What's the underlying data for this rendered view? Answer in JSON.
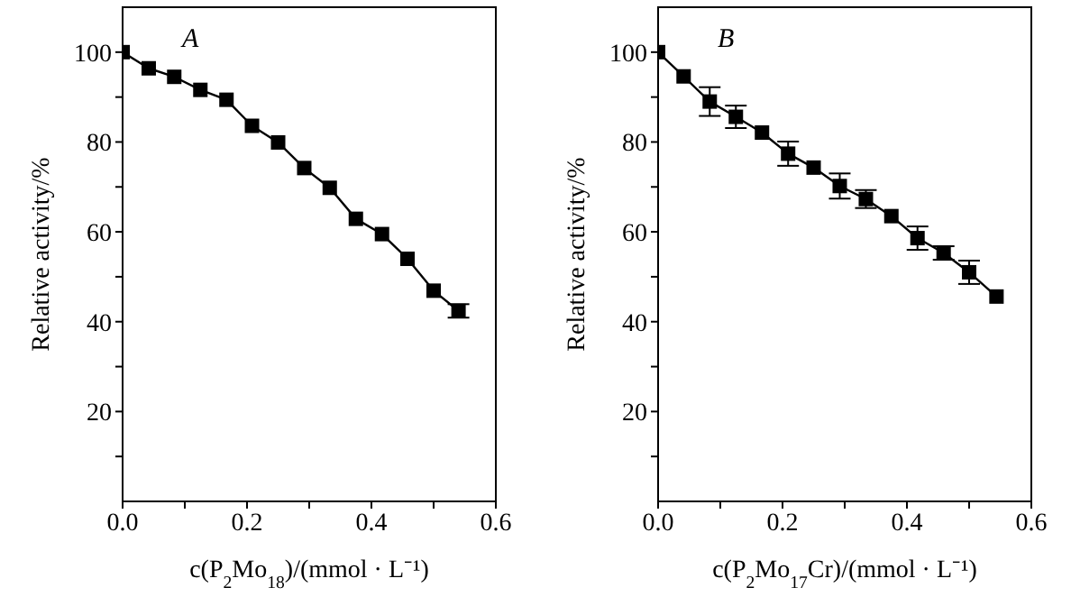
{
  "chart_data": [
    {
      "type": "line",
      "xlabel": "c(P$_{2}$Mo$_{18}$)/(mmol · L⁻¹)",
      "ylabel": "Relative activity/%",
      "annotations": [
        "A"
      ],
      "x": [
        0,
        0.042,
        0.083,
        0.125,
        0.167,
        0.208,
        0.25,
        0.292,
        0.333,
        0.375,
        0.417,
        0.458,
        0.5,
        0.54
      ],
      "series": [
        {
          "color": "#000000",
          "values": [
            100,
            96.4,
            94.5,
            91.6,
            89.4,
            83.6,
            79.9,
            74.2,
            69.8,
            62.9,
            59.5,
            54.0,
            46.9,
            42.4
          ],
          "errors": [
            null,
            null,
            null,
            null,
            null,
            null,
            null,
            null,
            null,
            null,
            null,
            null,
            null,
            1.5
          ]
        }
      ],
      "marker": "square",
      "line_style": "solid",
      "xlim": [
        0,
        0.6
      ],
      "xticks": [
        {
          "value": 0,
          "label": "0.0"
        },
        {
          "value": 0.1,
          "label": null
        },
        0.2,
        {
          "value": 0.3,
          "label": null
        },
        0.4,
        {
          "value": 0.5,
          "label": null
        },
        0.6
      ],
      "ylim": [
        0,
        110
      ],
      "yticks": [
        {
          "value": 10,
          "label": null
        },
        20,
        {
          "value": 30,
          "label": null
        },
        40,
        {
          "value": 50,
          "label": null
        },
        60,
        {
          "value": 70,
          "label": null
        },
        80,
        {
          "value": 90,
          "label": null
        },
        100
      ],
      "grid": false,
      "legend": false
    },
    {
      "type": "line",
      "xlabel": "c(P$_{2}$Mo$_{17}$Cr)/(mmol · L⁻¹)",
      "ylabel": "Relative activity/%",
      "annotations": [
        "B"
      ],
      "x": [
        0,
        0.041,
        0.083,
        0.125,
        0.167,
        0.209,
        0.25,
        0.292,
        0.334,
        0.375,
        0.417,
        0.459,
        0.5,
        0.544
      ],
      "series": [
        {
          "color": "#000000",
          "values": [
            100,
            94.6,
            89.0,
            85.6,
            82.1,
            77.4,
            74.3,
            70.2,
            67.3,
            63.5,
            58.6,
            55.3,
            51.0,
            45.6
          ],
          "errors": [
            null,
            null,
            3.2,
            2.5,
            null,
            2.7,
            null,
            2.8,
            2.0,
            null,
            2.6,
            1.5,
            2.6,
            null
          ]
        }
      ],
      "marker": "square",
      "line_style": "solid",
      "xlim": [
        0,
        0.6
      ],
      "xticks": [
        {
          "value": 0,
          "label": "0.0"
        },
        {
          "value": 0.1,
          "label": null
        },
        0.2,
        {
          "value": 0.3,
          "label": null
        },
        0.4,
        {
          "value": 0.5,
          "label": null
        },
        0.6
      ],
      "ylim": [
        0,
        110
      ],
      "yticks": [
        {
          "value": 10,
          "label": null
        },
        20,
        {
          "value": 30,
          "label": null
        },
        40,
        {
          "value": 50,
          "label": null
        },
        60,
        {
          "value": 70,
          "label": null
        },
        80,
        {
          "value": 90,
          "label": null
        },
        100
      ],
      "grid": false,
      "legend": false
    }
  ]
}
